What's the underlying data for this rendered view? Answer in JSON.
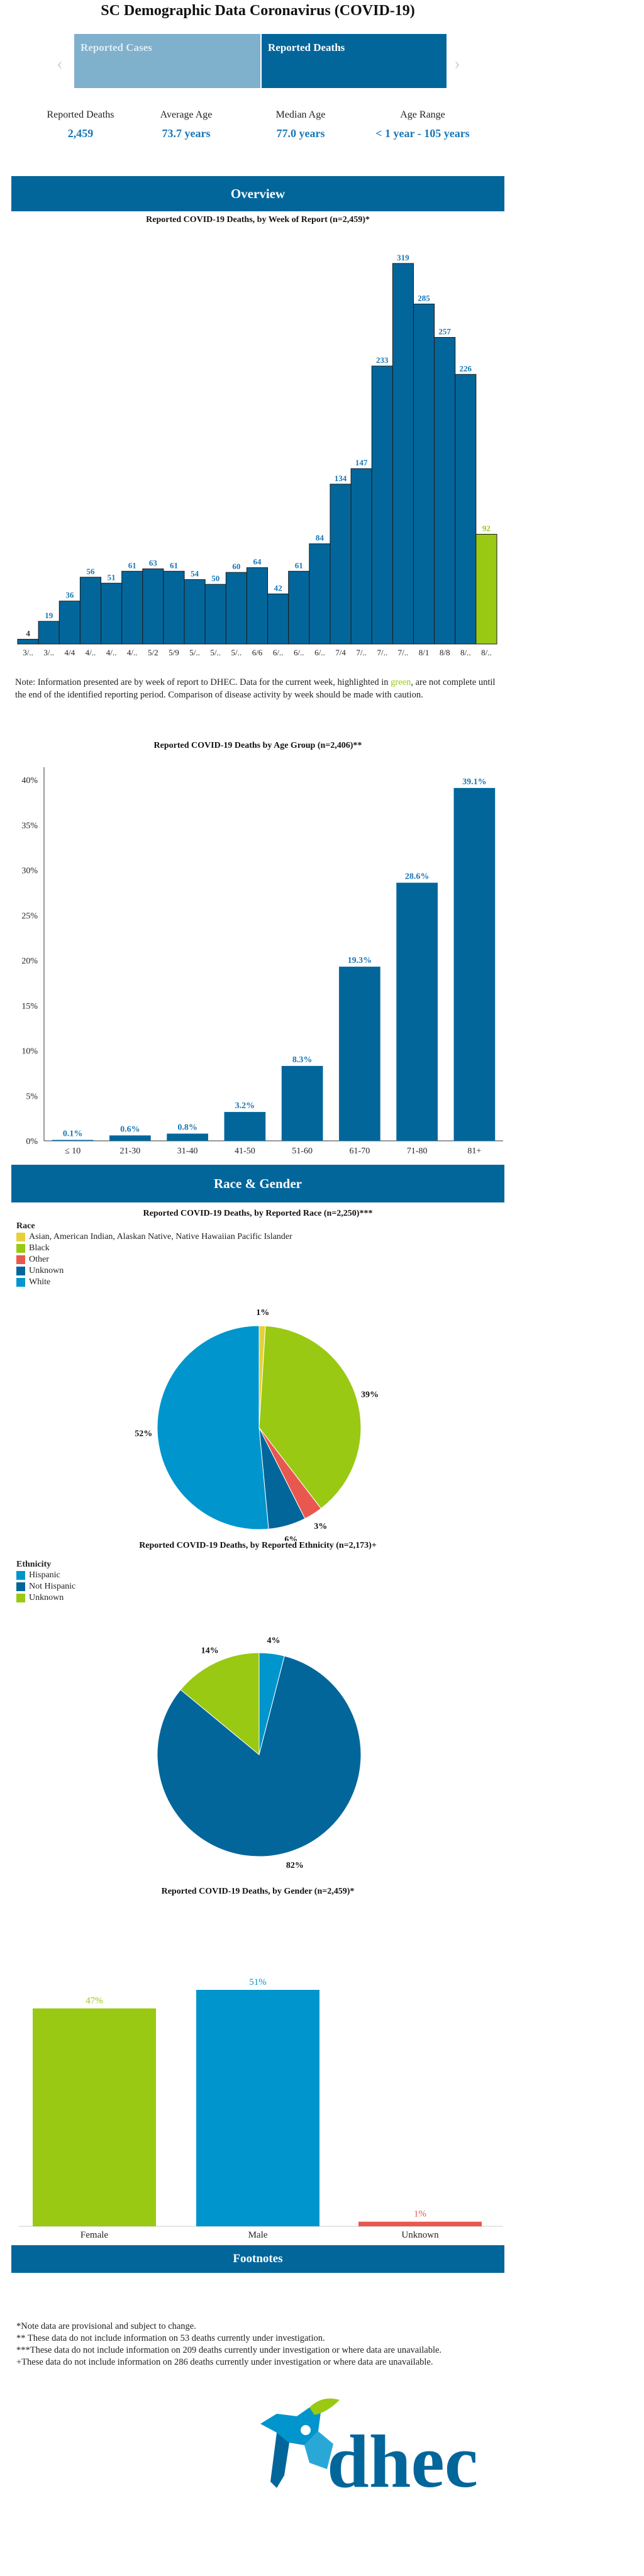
{
  "title": "SC Demographic Data Coronavirus (COVID-19)",
  "tabs": [
    {
      "label": "Reported Cases",
      "active": false
    },
    {
      "label": "Reported Deaths",
      "active": true
    }
  ],
  "stats": [
    {
      "label": "Reported Deaths",
      "value": "2,459"
    },
    {
      "label": "Average Age",
      "value": "73.7 years"
    },
    {
      "label": "Median Age",
      "value": "77.0 years"
    },
    {
      "label": "Age Range",
      "value": "< 1 year - 105 years"
    }
  ],
  "sections": {
    "overview": "Overview",
    "race_gender": "Race & Gender",
    "footnotes": "Footnotes"
  },
  "note": {
    "before": "Note: Information presented are by week of report to DHEC. Data for the current week, highlighted in ",
    "highlight": "green",
    "after": ", are not complete until the end of the identified reporting period. Comparison of disease activity by week should be made with caution."
  },
  "colors": {
    "primary": "#03669b",
    "green": "#99c913",
    "light_blue": "#0095cc",
    "red": "#e8584f",
    "yellow": "#e6d13b",
    "label_blue": "#1877b6"
  },
  "chart_data": [
    {
      "type": "bar",
      "title": "Reported COVID-19 Deaths, by Week of Report (n=2,459)*",
      "categories": [
        "3/..",
        "3/..",
        "4/4",
        "4/..",
        "4/..",
        "4/..",
        "5/2",
        "5/9",
        "5/..",
        "5/..",
        "5/..",
        "6/6",
        "6/..",
        "6/..",
        "6/..",
        "7/4",
        "7/..",
        "7/..",
        "7/..",
        "8/1",
        "8/8",
        "8/..",
        "8/.."
      ],
      "values": [
        4,
        19,
        36,
        56,
        51,
        61,
        63,
        61,
        54,
        50,
        60,
        64,
        42,
        61,
        84,
        134,
        147,
        233,
        319,
        285,
        257,
        226,
        92
      ],
      "highlight_last": true,
      "ylim": [
        0,
        330
      ]
    },
    {
      "type": "bar",
      "title": "Reported COVID-19 Deaths by Age Group (n=2,406)**",
      "categories": [
        "≤ 10",
        "21-30",
        "31-40",
        "41-50",
        "51-60",
        "61-70",
        "71-80",
        "81+"
      ],
      "values": [
        0.1,
        0.6,
        0.8,
        3.2,
        8.3,
        19.3,
        28.6,
        39.1
      ],
      "value_labels": [
        "0.1%",
        "0.6%",
        "0.8%",
        "3.2%",
        "8.3%",
        "19.3%",
        "28.6%",
        "39.1%"
      ],
      "yticks": [
        "0%",
        "5%",
        "10%",
        "15%",
        "20%",
        "25%",
        "30%",
        "35%",
        "40%"
      ],
      "ylim": [
        0,
        40
      ]
    },
    {
      "type": "pie",
      "title": "Reported COVID-19 Deaths, by Reported Race (n=2,250)***",
      "legend_title": "Race",
      "legend": [
        "Asian, American Indian, Alaskan Native, Native Hawaiian Pacific Islander",
        "Black",
        "Other",
        "Unknown",
        "White"
      ],
      "slices": [
        {
          "name": "Asian, American Indian, Alaskan Native, Native Hawaiian Pacific Islander",
          "value": 1,
          "label": "1%",
          "color": "#e6d13b"
        },
        {
          "name": "Black",
          "value": 39,
          "label": "39%",
          "color": "#99c913"
        },
        {
          "name": "Other",
          "value": 3,
          "label": "3%",
          "color": "#e8584f"
        },
        {
          "name": "Unknown",
          "value": 6,
          "label": "6%",
          "color": "#03669b"
        },
        {
          "name": "White",
          "value": 52,
          "label": "52%",
          "color": "#0095cc"
        }
      ]
    },
    {
      "type": "pie",
      "title": "Reported COVID-19 Deaths, by Reported Ethnicity (n=2,173)+",
      "legend_title": "Ethnicity",
      "legend": [
        "Hispanic",
        "Not Hispanic",
        "Unknown"
      ],
      "slices": [
        {
          "name": "Hispanic",
          "value": 4,
          "label": "4%",
          "color": "#0095cc"
        },
        {
          "name": "Not Hispanic",
          "value": 82,
          "label": "82%",
          "color": "#03669b"
        },
        {
          "name": "Unknown",
          "value": 14,
          "label": "14%",
          "color": "#99c913"
        }
      ]
    },
    {
      "type": "bar",
      "title": "Reported COVID-19 Deaths, by Gender (n=2,459)*",
      "categories": [
        "Female",
        "Male",
        "Unknown"
      ],
      "values": [
        47,
        51,
        1
      ],
      "value_labels": [
        "47%",
        "51%",
        "1%"
      ],
      "colors": [
        "#99c913",
        "#0095cc",
        "#e8584f"
      ],
      "ylim": [
        0,
        51
      ]
    }
  ],
  "footnotes": [
    "*Note data are provisional and subject to change.",
    "** These data do not include information on 53 deaths currently under investigation.",
    "***These data do not include information on 209 deaths currently under investigation or where data are unavailable.",
    "+These data do not include information on 286 deaths currently under investigation or where data are unavailable."
  ],
  "logo": {
    "text": "dhec",
    "icon": "palmetto-state-logo"
  }
}
